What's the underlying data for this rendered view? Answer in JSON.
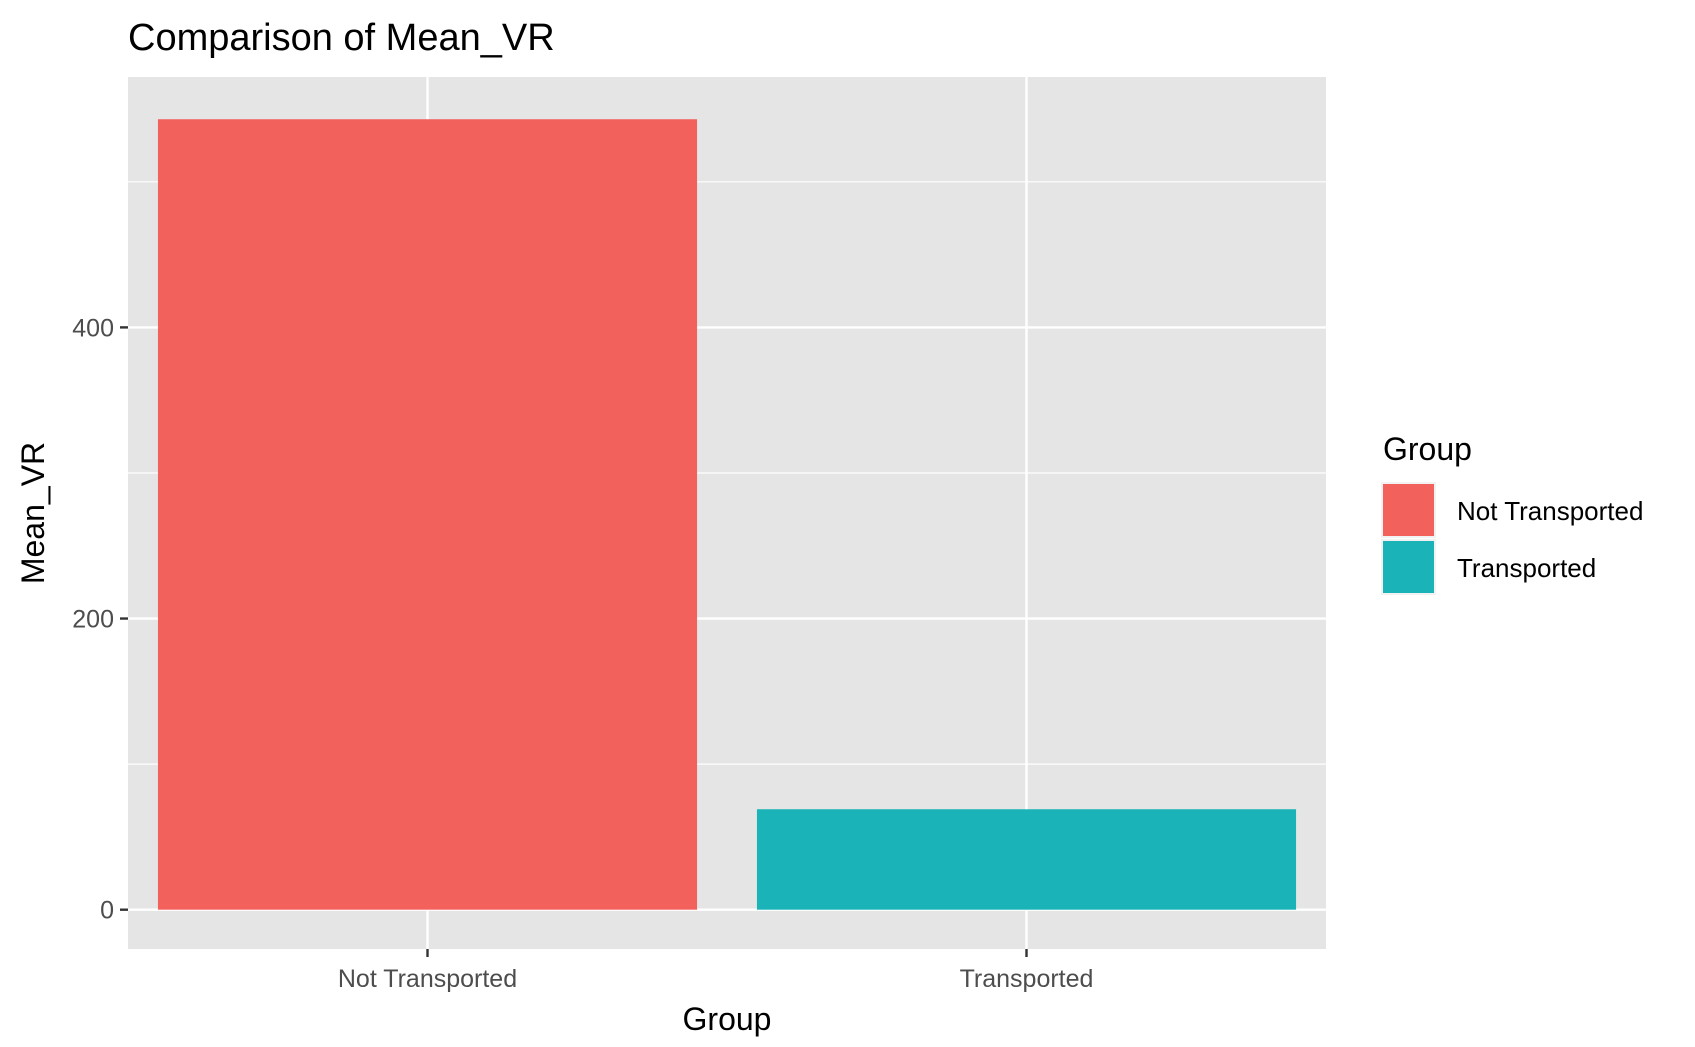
{
  "chart_data": {
    "type": "bar",
    "title": "Comparison of Mean_VR",
    "xlabel": "Group",
    "ylabel": "Mean_VR",
    "categories": [
      "Not Transported",
      "Transported"
    ],
    "values": [
      543,
      69
    ],
    "colors": [
      "#F2615C",
      "#1AB3B8"
    ],
    "ylim": [
      -27,
      572
    ],
    "y_major_ticks": [
      0,
      200,
      400
    ],
    "y_minor_gridlines": [
      100,
      300,
      500
    ],
    "y_tick_labels": [
      "0",
      "200",
      "400"
    ],
    "grid": true,
    "panel_background": "#E5E5E5",
    "legend": {
      "title": "Group",
      "position": "right",
      "items": [
        "Not Transported",
        "Transported"
      ]
    }
  }
}
